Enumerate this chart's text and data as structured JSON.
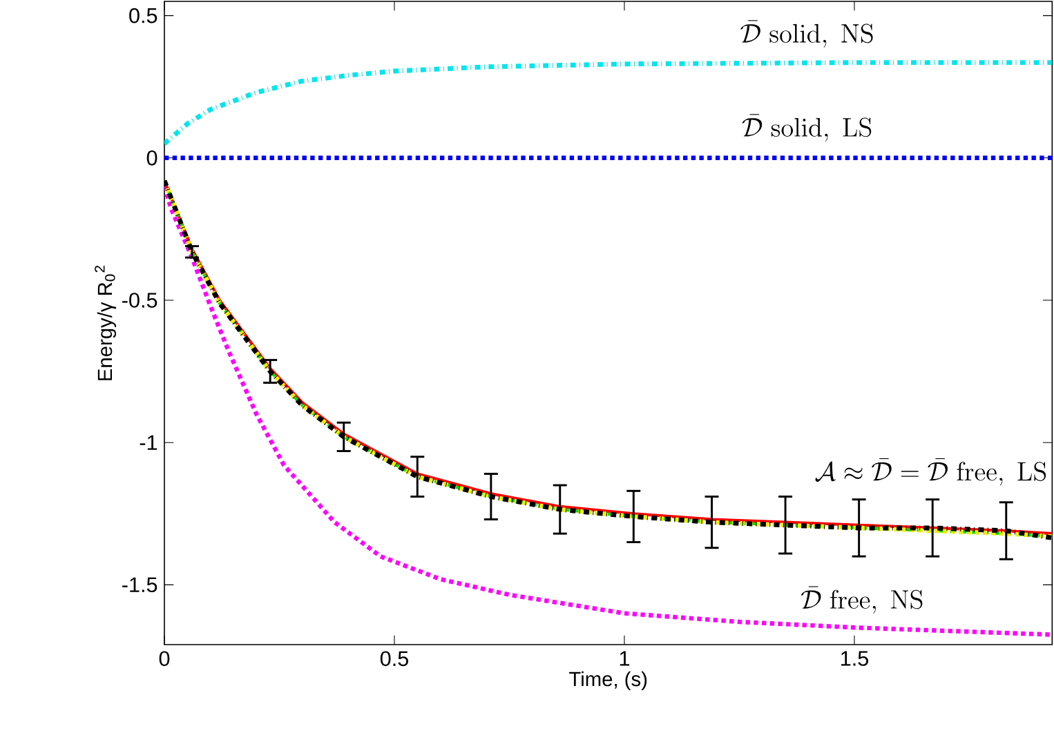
{
  "chart_data": {
    "type": "line",
    "xlabel": "Time, (s)",
    "ylabel": "Energy/γ R$_{0}$$^{2}$",
    "xlim": [
      0,
      1.93
    ],
    "ylim": [
      -1.71,
      0.55
    ],
    "xticks": [
      0,
      0.5,
      1,
      1.5
    ],
    "yticks": [
      -1.5,
      -1,
      -0.5,
      0,
      0.5
    ],
    "grid": false,
    "marker": "none",
    "series": [
      {
        "color": "#00e5ee",
        "line_style": "dashdot",
        "x": [
          0,
          0.05,
          0.1,
          0.2,
          0.3,
          0.4,
          0.5,
          0.7,
          1,
          1.5,
          1.93
        ],
        "values": [
          0.05,
          0.12,
          0.17,
          0.23,
          0.27,
          0.29,
          0.305,
          0.32,
          0.33,
          0.335,
          0.335
        ]
      },
      {
        "color": "#0000ff",
        "line_style": "dotted",
        "x": [
          0,
          1.93
        ],
        "values": [
          0,
          0
        ]
      },
      {
        "color": "#ff00ff",
        "line_style": "dotted",
        "x": [
          0,
          0.015,
          0.06,
          0.1,
          0.14,
          0.2,
          0.26,
          0.37,
          0.47,
          0.6,
          0.75,
          1,
          1.25,
          1.5,
          1.93
        ],
        "values": [
          -0.1,
          -0.18,
          -0.35,
          -0.52,
          -0.68,
          -0.9,
          -1.08,
          -1.28,
          -1.4,
          -1.48,
          -1.535,
          -1.6,
          -1.63,
          -1.65,
          -1.675
        ]
      },
      {
        "color": "#ff0000",
        "line_style": "solid",
        "x": [
          0,
          0.06,
          0.12,
          0.23,
          0.3,
          0.39,
          0.55,
          0.71,
          0.86,
          1.02,
          1.19,
          1.35,
          1.51,
          1.67,
          1.83,
          1.93
        ],
        "values": [
          -0.08,
          -0.32,
          -0.5,
          -0.74,
          -0.86,
          -0.97,
          -1.11,
          -1.18,
          -1.225,
          -1.25,
          -1.27,
          -1.28,
          -1.29,
          -1.3,
          -1.31,
          -1.32
        ]
      },
      {
        "color": "#00dd00",
        "line_style": "dashed",
        "x": [
          0,
          0.06,
          0.12,
          0.23,
          0.3,
          0.39,
          0.55,
          0.71,
          0.86,
          1.02,
          1.19,
          1.35,
          1.51,
          1.67,
          1.83,
          1.93
        ],
        "values": [
          -0.08,
          -0.33,
          -0.51,
          -0.75,
          -0.87,
          -0.98,
          -1.12,
          -1.19,
          -1.235,
          -1.26,
          -1.28,
          -1.29,
          -1.3,
          -1.31,
          -1.32,
          -1.33
        ]
      },
      {
        "color": "#eeee00",
        "line_style": "dotted",
        "x": [
          0,
          0.06,
          0.12,
          0.23,
          0.3,
          0.39,
          0.55,
          0.71,
          0.86,
          1.02,
          1.19,
          1.35,
          1.51,
          1.67,
          1.83,
          1.93
        ],
        "values": [
          -0.08,
          -0.33,
          -0.51,
          -0.75,
          -0.87,
          -0.98,
          -1.12,
          -1.19,
          -1.235,
          -1.26,
          -1.28,
          -1.29,
          -1.3,
          -1.31,
          -1.32,
          -1.33
        ]
      },
      {
        "color": "#000000",
        "line_style": "dashdot",
        "x": [
          0,
          0.06,
          0.12,
          0.23,
          0.3,
          0.39,
          0.55,
          0.71,
          0.86,
          1.02,
          1.19,
          1.35,
          1.51,
          1.67,
          1.83,
          1.93
        ],
        "values": [
          -0.08,
          -0.33,
          -0.51,
          -0.75,
          -0.87,
          -0.98,
          -1.12,
          -1.19,
          -1.235,
          -1.26,
          -1.28,
          -1.29,
          -1.3,
          -1.3,
          -1.31,
          -1.335
        ],
        "errors": [
          null,
          0.02,
          null,
          0.04,
          null,
          0.05,
          0.07,
          0.08,
          0.085,
          0.09,
          0.09,
          0.1,
          0.1,
          0.1,
          0.1,
          null
        ]
      }
    ],
    "annotations": [
      "\\bar{\\mathcal{D}}\\mathrm{\\ solid,\\ NS}",
      "\\bar{\\mathcal{D}}\\mathrm{\\ solid,\\ LS}",
      "\\mathcal{A}\\approx\\bar{\\mathcal{D}}=\\bar{\\mathcal{D}}\\mathrm{\\ free,\\ LS}",
      "\\bar{\\mathcal{D}}\\mathrm{\\ free,\\ NS}"
    ]
  }
}
